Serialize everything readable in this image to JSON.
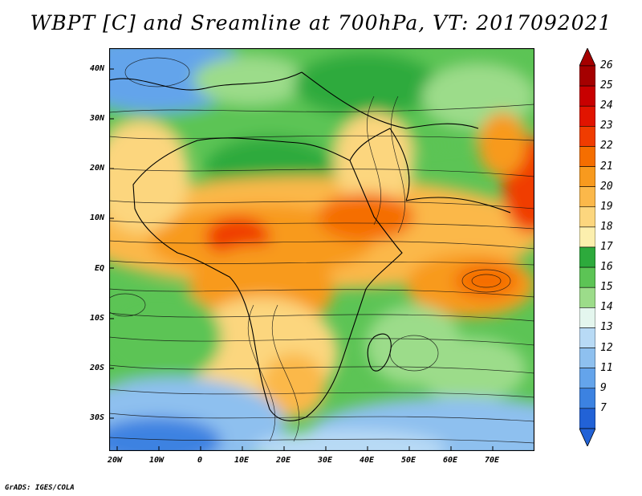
{
  "title": "WBPT [C] and Sreamline at 700hPa, VT: 2017092021",
  "credit": "GrADS: IGES/COLA",
  "lat_labels": [
    "40N",
    "30N",
    "20N",
    "10N",
    "EQ",
    "10S",
    "20S",
    "30S"
  ],
  "lon_labels": [
    "20W",
    "10W",
    "0",
    "10E",
    "20E",
    "30E",
    "40E",
    "50E",
    "60E",
    "70E"
  ],
  "colorbar": {
    "labels": [
      "26",
      "25",
      "24",
      "23",
      "22",
      "21",
      "20",
      "19",
      "18",
      "17",
      "16",
      "15",
      "14",
      "13",
      "12",
      "11",
      "9",
      "7"
    ],
    "colors": [
      "#a50000",
      "#c80000",
      "#e11400",
      "#f03c00",
      "#f56e00",
      "#f89a1e",
      "#fbb84a",
      "#fcd67e",
      "#fcefae",
      "#2daa3c",
      "#5cc455",
      "#9cdc8a",
      "#e4f6ee",
      "#b8daf5",
      "#8ec0ef",
      "#64a4eb",
      "#3c82e1",
      "#2262d6"
    ]
  }
}
